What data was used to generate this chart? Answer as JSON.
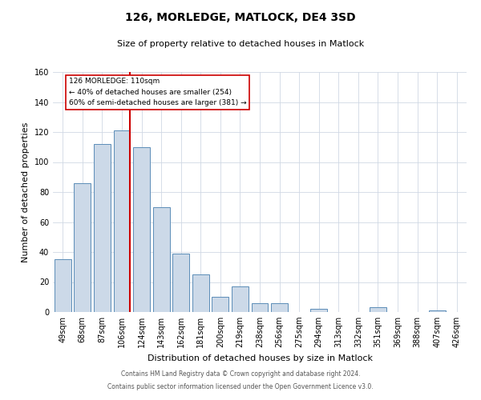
{
  "title": "126, MORLEDGE, MATLOCK, DE4 3SD",
  "subtitle": "Size of property relative to detached houses in Matlock",
  "xlabel": "Distribution of detached houses by size in Matlock",
  "ylabel": "Number of detached properties",
  "bar_labels": [
    "49sqm",
    "68sqm",
    "87sqm",
    "106sqm",
    "124sqm",
    "143sqm",
    "162sqm",
    "181sqm",
    "200sqm",
    "219sqm",
    "238sqm",
    "256sqm",
    "275sqm",
    "294sqm",
    "313sqm",
    "332sqm",
    "351sqm",
    "369sqm",
    "388sqm",
    "407sqm",
    "426sqm"
  ],
  "bar_values": [
    35,
    86,
    112,
    121,
    110,
    70,
    39,
    25,
    10,
    17,
    6,
    6,
    0,
    2,
    0,
    0,
    3,
    0,
    0,
    1,
    0
  ],
  "bar_color": "#ccd9e8",
  "bar_edge_color": "#5b8db8",
  "vline_index": 3,
  "vline_color": "#cc0000",
  "annotation_title": "126 MORLEDGE: 110sqm",
  "annotation_line1": "← 40% of detached houses are smaller (254)",
  "annotation_line2": "60% of semi-detached houses are larger (381) →",
  "annotation_box_color": "#ffffff",
  "annotation_box_edge": "#cc0000",
  "ylim": [
    0,
    160
  ],
  "yticks": [
    0,
    20,
    40,
    60,
    80,
    100,
    120,
    140,
    160
  ],
  "footer_line1": "Contains HM Land Registry data © Crown copyright and database right 2024.",
  "footer_line2": "Contains public sector information licensed under the Open Government Licence v3.0.",
  "grid_color": "#d0d8e4",
  "title_fontsize": 10,
  "subtitle_fontsize": 8,
  "ylabel_fontsize": 8,
  "xlabel_fontsize": 8,
  "tick_fontsize": 7,
  "footer_fontsize": 5.5
}
